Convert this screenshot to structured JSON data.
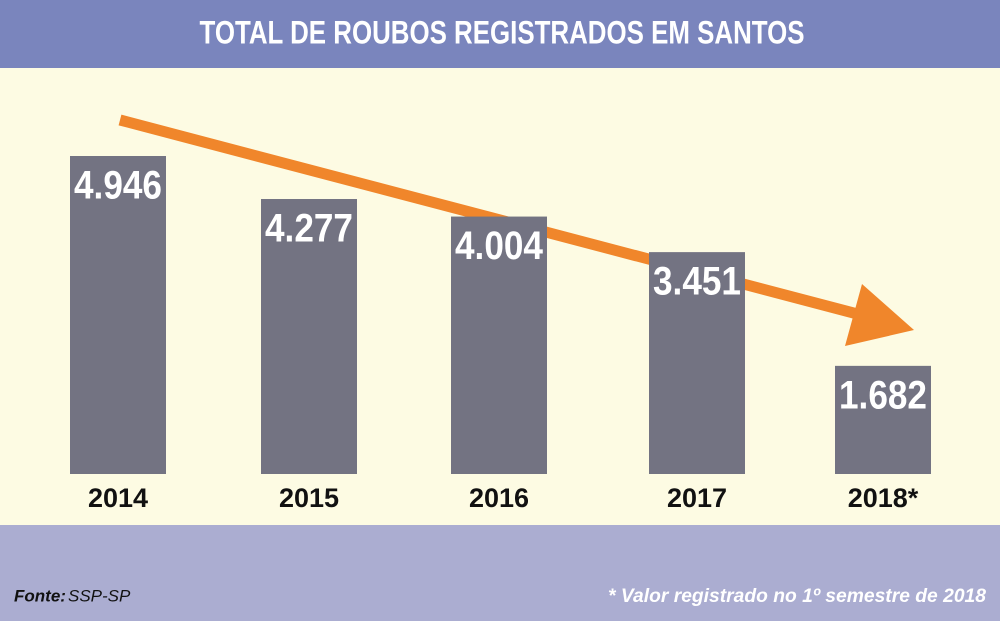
{
  "chart_data": {
    "type": "bar",
    "title": "TOTAL DE ROUBOS REGISTRADOS EM SANTOS",
    "categories": [
      "2014",
      "2015",
      "2016",
      "2017",
      "2018*"
    ],
    "values": [
      4946,
      4277,
      4004,
      3451,
      1682
    ],
    "value_labels": [
      "4.946",
      "4.277",
      "4.004",
      "3.451",
      "1.682"
    ],
    "color": "#737382",
    "source": {
      "label": "Fonte:",
      "text": "SSP-SP"
    },
    "note": "* Valor registrado no 1º semestre de 2018"
  }
}
